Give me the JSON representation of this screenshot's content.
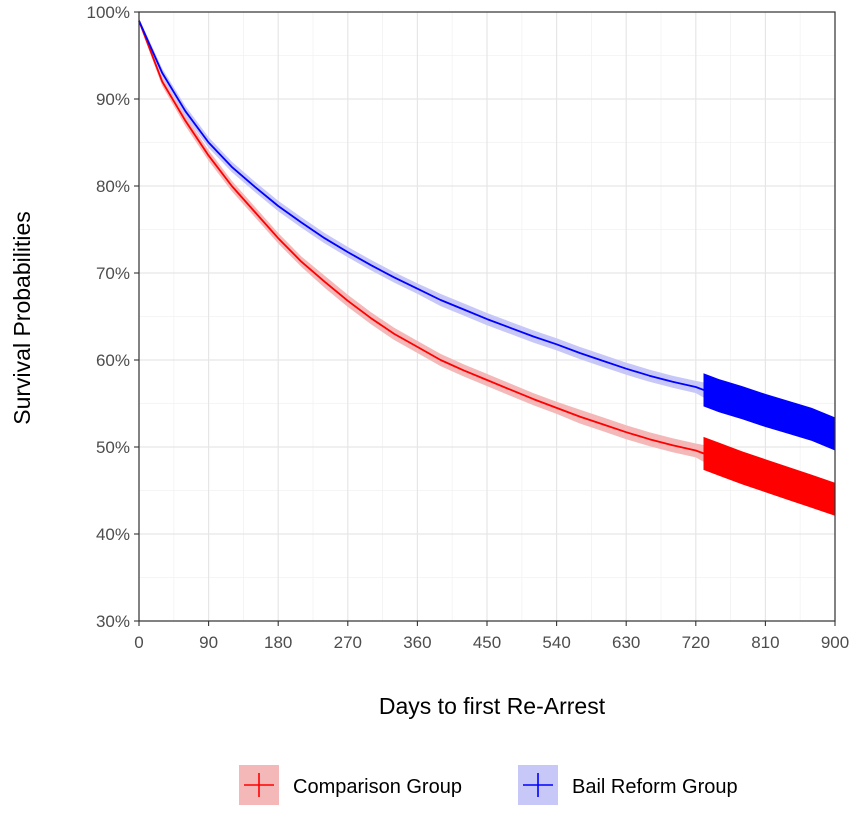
{
  "chart_data": {
    "type": "line",
    "subtype": "kaplan-meier survival curve",
    "xlabel": "Days to first Re-Arrest",
    "ylabel": "Survival Probabilities",
    "xlim": [
      0,
      900
    ],
    "ylim": [
      30,
      100
    ],
    "y_unit": "%",
    "x_ticks": [
      0,
      90,
      180,
      270,
      360,
      450,
      540,
      630,
      720,
      810,
      900
    ],
    "y_ticks": [
      30,
      40,
      50,
      60,
      70,
      80,
      90,
      100
    ],
    "y_tick_labels": [
      "30%",
      "40%",
      "50%",
      "60%",
      "70%",
      "80%",
      "90%",
      "100%"
    ],
    "grid": true,
    "legend_position": "bottom",
    "series": [
      {
        "name": "Comparison Group",
        "color": "#ff0000",
        "band_color": "#f4b8b8",
        "x": [
          0,
          30,
          60,
          90,
          120,
          150,
          180,
          210,
          240,
          270,
          300,
          330,
          360,
          390,
          420,
          450,
          480,
          510,
          540,
          570,
          600,
          630,
          660,
          690,
          720,
          750,
          780,
          810,
          840,
          870,
          900
        ],
        "y": [
          99,
          92,
          87.5,
          83.5,
          80,
          77,
          74,
          71.3,
          69,
          66.8,
          64.8,
          63,
          61.5,
          60,
          58.8,
          57.7,
          56.6,
          55.5,
          54.5,
          53.5,
          52.6,
          51.7,
          50.9,
          50.2,
          49.6,
          48.6,
          47.6,
          46.7,
          45.8,
          44.9,
          44
        ],
        "band_half_width": [
          0.3,
          0.5,
          0.6,
          0.6,
          0.6,
          0.6,
          0.6,
          0.6,
          0.7,
          0.7,
          0.7,
          0.7,
          0.7,
          0.7,
          0.7,
          0.7,
          0.7,
          0.7,
          0.7,
          0.8,
          0.8,
          0.8,
          0.8,
          0.8,
          0.8,
          1.3,
          1.3,
          1.3,
          1.3,
          1.3,
          1.3
        ]
      },
      {
        "name": "Bail Reform Group",
        "color": "#0000ff",
        "band_color": "#c8c8f8",
        "x": [
          0,
          30,
          60,
          90,
          120,
          150,
          180,
          210,
          240,
          270,
          300,
          330,
          360,
          390,
          420,
          450,
          480,
          510,
          540,
          570,
          600,
          630,
          660,
          690,
          720,
          750,
          780,
          810,
          840,
          870,
          900
        ],
        "y": [
          99,
          93,
          88.6,
          85,
          82.2,
          79.9,
          77.7,
          75.8,
          74,
          72.4,
          70.9,
          69.5,
          68.2,
          66.9,
          65.8,
          64.7,
          63.7,
          62.7,
          61.8,
          60.8,
          59.9,
          59,
          58.2,
          57.5,
          56.9,
          55.9,
          55.1,
          54.2,
          53.4,
          52.6,
          51.5
        ],
        "band_half_width": [
          0.3,
          0.5,
          0.6,
          0.6,
          0.6,
          0.6,
          0.6,
          0.6,
          0.6,
          0.6,
          0.6,
          0.6,
          0.6,
          0.7,
          0.7,
          0.7,
          0.7,
          0.7,
          0.7,
          0.7,
          0.7,
          0.7,
          0.7,
          0.7,
          0.7,
          1.2,
          1.2,
          1.2,
          1.2,
          1.2,
          1.2
        ]
      }
    ],
    "censor_dense_from_x": 730
  }
}
